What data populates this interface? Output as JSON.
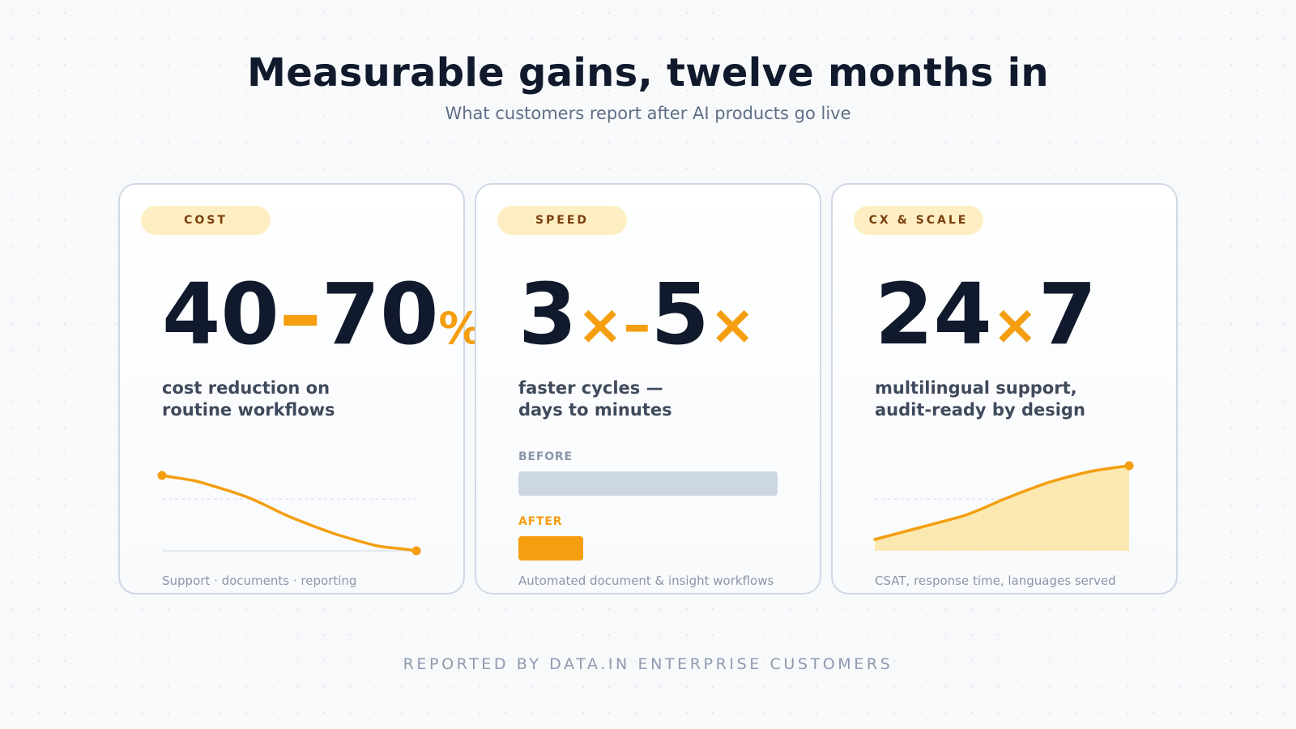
{
  "title": "Measurable gains, twelve months in",
  "subtitle": "What customers report after AI products go live",
  "accent_color": "#f49e10",
  "cards": [
    {
      "tag": "COST",
      "metric": {
        "from": "40",
        "sep": "–",
        "to": "70",
        "unit": "%"
      },
      "description": [
        "cost reduction on",
        "routine workflows"
      ],
      "caption": "Support · documents · reporting",
      "trend": "decreasing"
    },
    {
      "tag": "SPEED",
      "metric": {
        "from": "3",
        "from_unit": "×",
        "sep": "–",
        "to": "5",
        "to_unit": "×"
      },
      "description": [
        "faster cycles —",
        "days to minutes"
      ],
      "comparison": {
        "before_label": "BEFORE",
        "after_label": "AFTER",
        "before_value": 1.0,
        "after_value": 0.25
      },
      "caption": "Automated document & insight workflows"
    },
    {
      "tag": "CX & SCALE",
      "metric": {
        "from": "24",
        "sep": "×",
        "to": "7"
      },
      "description": [
        "multilingual support,",
        "audit-ready by design"
      ],
      "caption": "CSAT, response time, languages served",
      "trend": "increasing"
    }
  ],
  "footer": "REPORTED BY DATA.IN ENTERPRISE CUSTOMERS"
}
